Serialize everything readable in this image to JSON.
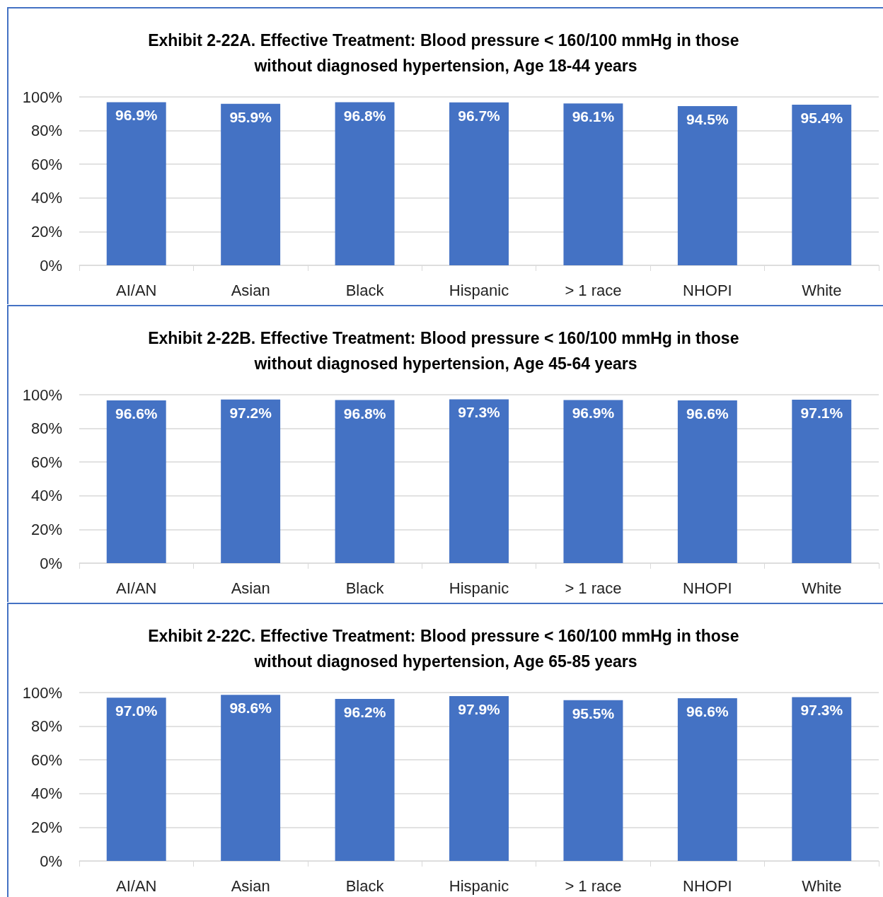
{
  "chart_data": [
    {
      "type": "bar",
      "title": "Exhibit 2-22A. Effective Treatment: Blood pressure < 160/100 mmHg in those without diagnosed hypertension, Age 18-44 years",
      "categories": [
        "AI/AN",
        "Asian",
        "Black",
        "Hispanic",
        "> 1 race",
        "NHOPI",
        "White"
      ],
      "values": [
        96.9,
        95.9,
        96.8,
        96.7,
        96.1,
        94.5,
        95.4
      ],
      "value_labels": [
        "96.9%",
        "95.9%",
        "96.8%",
        "96.7%",
        "96.1%",
        "94.5%",
        "95.4%"
      ],
      "color": "#4472c4",
      "ylim": [
        0,
        100
      ],
      "yticks": [
        {
          "value": 0,
          "label": "0%"
        },
        {
          "value": 20,
          "label": "20%"
        },
        {
          "value": 40,
          "label": "40%"
        },
        {
          "value": 60,
          "label": "60%"
        },
        {
          "value": 80,
          "label": "80%"
        },
        {
          "value": 100,
          "label": "100%"
        }
      ],
      "grid": "y"
    },
    {
      "type": "bar",
      "title": "Exhibit 2-22B. Effective Treatment: Blood pressure < 160/100 mmHg in those without diagnosed hypertension, Age 45-64 years",
      "categories": [
        "AI/AN",
        "Asian",
        "Black",
        "Hispanic",
        "> 1 race",
        "NHOPI",
        "White"
      ],
      "values": [
        96.6,
        97.2,
        96.8,
        97.3,
        96.9,
        96.6,
        97.1
      ],
      "value_labels": [
        "96.6%",
        "97.2%",
        "96.8%",
        "97.3%",
        "96.9%",
        "96.6%",
        "97.1%"
      ],
      "color": "#4472c4",
      "ylim": [
        0,
        100
      ],
      "yticks": [
        {
          "value": 0,
          "label": "0%"
        },
        {
          "value": 20,
          "label": "20%"
        },
        {
          "value": 40,
          "label": "40%"
        },
        {
          "value": 60,
          "label": "60%"
        },
        {
          "value": 80,
          "label": "80%"
        },
        {
          "value": 100,
          "label": "100%"
        }
      ],
      "grid": "y"
    },
    {
      "type": "bar",
      "title": "Exhibit 2-22C. Effective Treatment: Blood pressure < 160/100 mmHg in those without diagnosed hypertension, Age 65-85 years",
      "categories": [
        "AI/AN",
        "Asian",
        "Black",
        "Hispanic",
        "> 1 race",
        "NHOPI",
        "White"
      ],
      "values": [
        97.0,
        98.6,
        96.2,
        97.9,
        95.5,
        96.6,
        97.3
      ],
      "value_labels": [
        "97.0%",
        "98.6%",
        "96.2%",
        "97.9%",
        "95.5%",
        "96.6%",
        "97.3%"
      ],
      "color": "#4472c4",
      "ylim": [
        0,
        100
      ],
      "yticks": [
        {
          "value": 0,
          "label": "0%"
        },
        {
          "value": 20,
          "label": "20%"
        },
        {
          "value": 40,
          "label": "40%"
        },
        {
          "value": 60,
          "label": "60%"
        },
        {
          "value": 80,
          "label": "80%"
        },
        {
          "value": 100,
          "label": "100%"
        }
      ],
      "grid": "y"
    }
  ]
}
